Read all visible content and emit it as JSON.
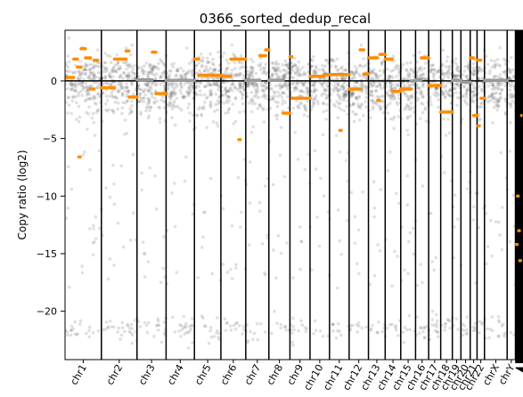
{
  "chart_data": {
    "type": "scatter",
    "title": "0366_sorted_dedup_recal",
    "xlabel": "",
    "ylabel": "Copy ratio (log2)",
    "ylim": [
      -24.2,
      4.4
    ],
    "yticks": [
      0,
      -5,
      -10,
      -15,
      -20
    ],
    "grid": false,
    "legend": "none",
    "colors": {
      "points": "#555555",
      "segment_gain_loss": "#ff8c00",
      "segment_neutral": "#999999",
      "boundary": "#000000"
    },
    "chromosomes": [
      {
        "label": "chr1",
        "start": 0,
        "end": 250
      },
      {
        "label": "chr2",
        "start": 250,
        "end": 495
      },
      {
        "label": "chr3",
        "start": 495,
        "end": 695
      },
      {
        "label": "chr4",
        "start": 695,
        "end": 890
      },
      {
        "label": "chr5",
        "start": 890,
        "end": 1072
      },
      {
        "label": "chr6",
        "start": 1072,
        "end": 1243
      },
      {
        "label": "chr7",
        "start": 1243,
        "end": 1402
      },
      {
        "label": "chr8",
        "start": 1402,
        "end": 1547
      },
      {
        "label": "chr9",
        "start": 1547,
        "end": 1685
      },
      {
        "label": "chr10",
        "start": 1685,
        "end": 1819
      },
      {
        "label": "chr11",
        "start": 1819,
        "end": 1954
      },
      {
        "label": "chr12",
        "start": 1954,
        "end": 2087
      },
      {
        "label": "chr13",
        "start": 2087,
        "end": 2202
      },
      {
        "label": "chr14",
        "start": 2202,
        "end": 2309
      },
      {
        "label": "chr15",
        "start": 2309,
        "end": 2411
      },
      {
        "label": "chr16",
        "start": 2411,
        "end": 2501
      },
      {
        "label": "chr17",
        "start": 2501,
        "end": 2584
      },
      {
        "label": "chr18",
        "start": 2584,
        "end": 2664
      },
      {
        "label": "chr19",
        "start": 2664,
        "end": 2723
      },
      {
        "label": "chr20",
        "start": 2723,
        "end": 2787
      },
      {
        "label": "chr21",
        "start": 2787,
        "end": 2834
      },
      {
        "label": "chr22",
        "start": 2834,
        "end": 2885
      },
      {
        "label": "chrX",
        "start": 2885,
        "end": 3041
      },
      {
        "label": "chrY",
        "start": 3041,
        "end": 3098
      }
    ],
    "unplaced_contigs": {
      "start": 3098,
      "end": 3150,
      "count": 22
    },
    "x_min": 0,
    "x_max": 3150,
    "segments": [
      {
        "x0": 0,
        "x1": 60,
        "y": 0.3,
        "gain": true
      },
      {
        "x0": 60,
        "x1": 85,
        "y": 1.9,
        "gain": true
      },
      {
        "x0": 85,
        "x1": 110,
        "y": 1.2,
        "gain": true
      },
      {
        "x0": 110,
        "x1": 140,
        "y": 2.8,
        "gain": true
      },
      {
        "x0": 140,
        "x1": 175,
        "y": 2.0,
        "gain": true
      },
      {
        "x0": 175,
        "x1": 200,
        "y": -0.7,
        "gain": true
      },
      {
        "x0": 200,
        "x1": 225,
        "y": 1.8,
        "gain": true
      },
      {
        "x0": 95,
        "x1": 105,
        "y": -6.6,
        "gain": true
      },
      {
        "x0": 250,
        "x1": 340,
        "y": -0.6,
        "gain": true
      },
      {
        "x0": 340,
        "x1": 420,
        "y": 1.9,
        "gain": true
      },
      {
        "x0": 420,
        "x1": 440,
        "y": 2.6,
        "gain": true
      },
      {
        "x0": 440,
        "x1": 495,
        "y": -1.4,
        "gain": true
      },
      {
        "x0": 495,
        "x1": 600,
        "y": 0.1,
        "gain": false
      },
      {
        "x0": 600,
        "x1": 625,
        "y": 2.5,
        "gain": true
      },
      {
        "x0": 625,
        "x1": 695,
        "y": -1.1,
        "gain": true
      },
      {
        "x0": 695,
        "x1": 890,
        "y": 0.05,
        "gain": false
      },
      {
        "x0": 890,
        "x1": 920,
        "y": 1.9,
        "gain": true
      },
      {
        "x0": 920,
        "x1": 1072,
        "y": 0.5,
        "gain": true
      },
      {
        "x0": 1072,
        "x1": 1140,
        "y": 0.4,
        "gain": true
      },
      {
        "x0": 1140,
        "x1": 1243,
        "y": 1.9,
        "gain": true
      },
      {
        "x0": 1195,
        "x1": 1205,
        "y": -5.1,
        "gain": true
      },
      {
        "x0": 1243,
        "x1": 1340,
        "y": 0.05,
        "gain": false
      },
      {
        "x0": 1340,
        "x1": 1380,
        "y": 2.2,
        "gain": true
      },
      {
        "x0": 1380,
        "x1": 1402,
        "y": 2.7,
        "gain": true
      },
      {
        "x0": 1402,
        "x1": 1500,
        "y": 0.05,
        "gain": false
      },
      {
        "x0": 1500,
        "x1": 1547,
        "y": -2.8,
        "gain": true
      },
      {
        "x0": 1547,
        "x1": 1560,
        "y": 2.1,
        "gain": true
      },
      {
        "x0": 1560,
        "x1": 1685,
        "y": -1.5,
        "gain": true
      },
      {
        "x0": 1685,
        "x1": 1780,
        "y": 0.4,
        "gain": true
      },
      {
        "x0": 1780,
        "x1": 1954,
        "y": 0.55,
        "gain": true
      },
      {
        "x0": 1890,
        "x1": 1900,
        "y": -4.3,
        "gain": true
      },
      {
        "x0": 1954,
        "x1": 2030,
        "y": -0.7,
        "gain": true
      },
      {
        "x0": 2030,
        "x1": 2055,
        "y": 2.7,
        "gain": true
      },
      {
        "x0": 2055,
        "x1": 2087,
        "y": 0.6,
        "gain": true
      },
      {
        "x0": 2087,
        "x1": 2150,
        "y": 2.0,
        "gain": true
      },
      {
        "x0": 2150,
        "x1": 2165,
        "y": -1.7,
        "gain": true
      },
      {
        "x0": 2165,
        "x1": 2202,
        "y": 2.3,
        "gain": true
      },
      {
        "x0": 2202,
        "x1": 2250,
        "y": 1.9,
        "gain": true
      },
      {
        "x0": 2250,
        "x1": 2309,
        "y": -0.9,
        "gain": true
      },
      {
        "x0": 2309,
        "x1": 2380,
        "y": -0.7,
        "gain": true
      },
      {
        "x0": 2380,
        "x1": 2411,
        "y": 0.0,
        "gain": false
      },
      {
        "x0": 2411,
        "x1": 2450,
        "y": 0.1,
        "gain": false
      },
      {
        "x0": 2450,
        "x1": 2501,
        "y": 2.0,
        "gain": true
      },
      {
        "x0": 2501,
        "x1": 2584,
        "y": -0.4,
        "gain": true
      },
      {
        "x0": 2584,
        "x1": 2664,
        "y": -2.7,
        "gain": true
      },
      {
        "x0": 2664,
        "x1": 2723,
        "y": 0.05,
        "gain": false
      },
      {
        "x0": 2723,
        "x1": 2787,
        "y": -0.1,
        "gain": false
      },
      {
        "x0": 2787,
        "x1": 2810,
        "y": 2.0,
        "gain": true
      },
      {
        "x0": 2810,
        "x1": 2834,
        "y": -3.0,
        "gain": true
      },
      {
        "x0": 2834,
        "x1": 2860,
        "y": 1.8,
        "gain": true
      },
      {
        "x0": 2860,
        "x1": 2885,
        "y": -1.5,
        "gain": true
      },
      {
        "x0": 2885,
        "x1": 3041,
        "y": 0.05,
        "gain": false
      },
      {
        "x0": 2840,
        "x1": 2850,
        "y": -3.9,
        "gain": true
      },
      {
        "x0": 3105,
        "x1": 3110,
        "y": -14.2,
        "gain": true
      },
      {
        "x0": 3112,
        "x1": 3117,
        "y": -10.0,
        "gain": true
      },
      {
        "x0": 3120,
        "x1": 3125,
        "y": -13.0,
        "gain": true
      },
      {
        "x0": 3128,
        "x1": 3133,
        "y": -15.6,
        "gain": true
      },
      {
        "x0": 3140,
        "x1": 3145,
        "y": -3.0,
        "gain": true
      }
    ]
  }
}
